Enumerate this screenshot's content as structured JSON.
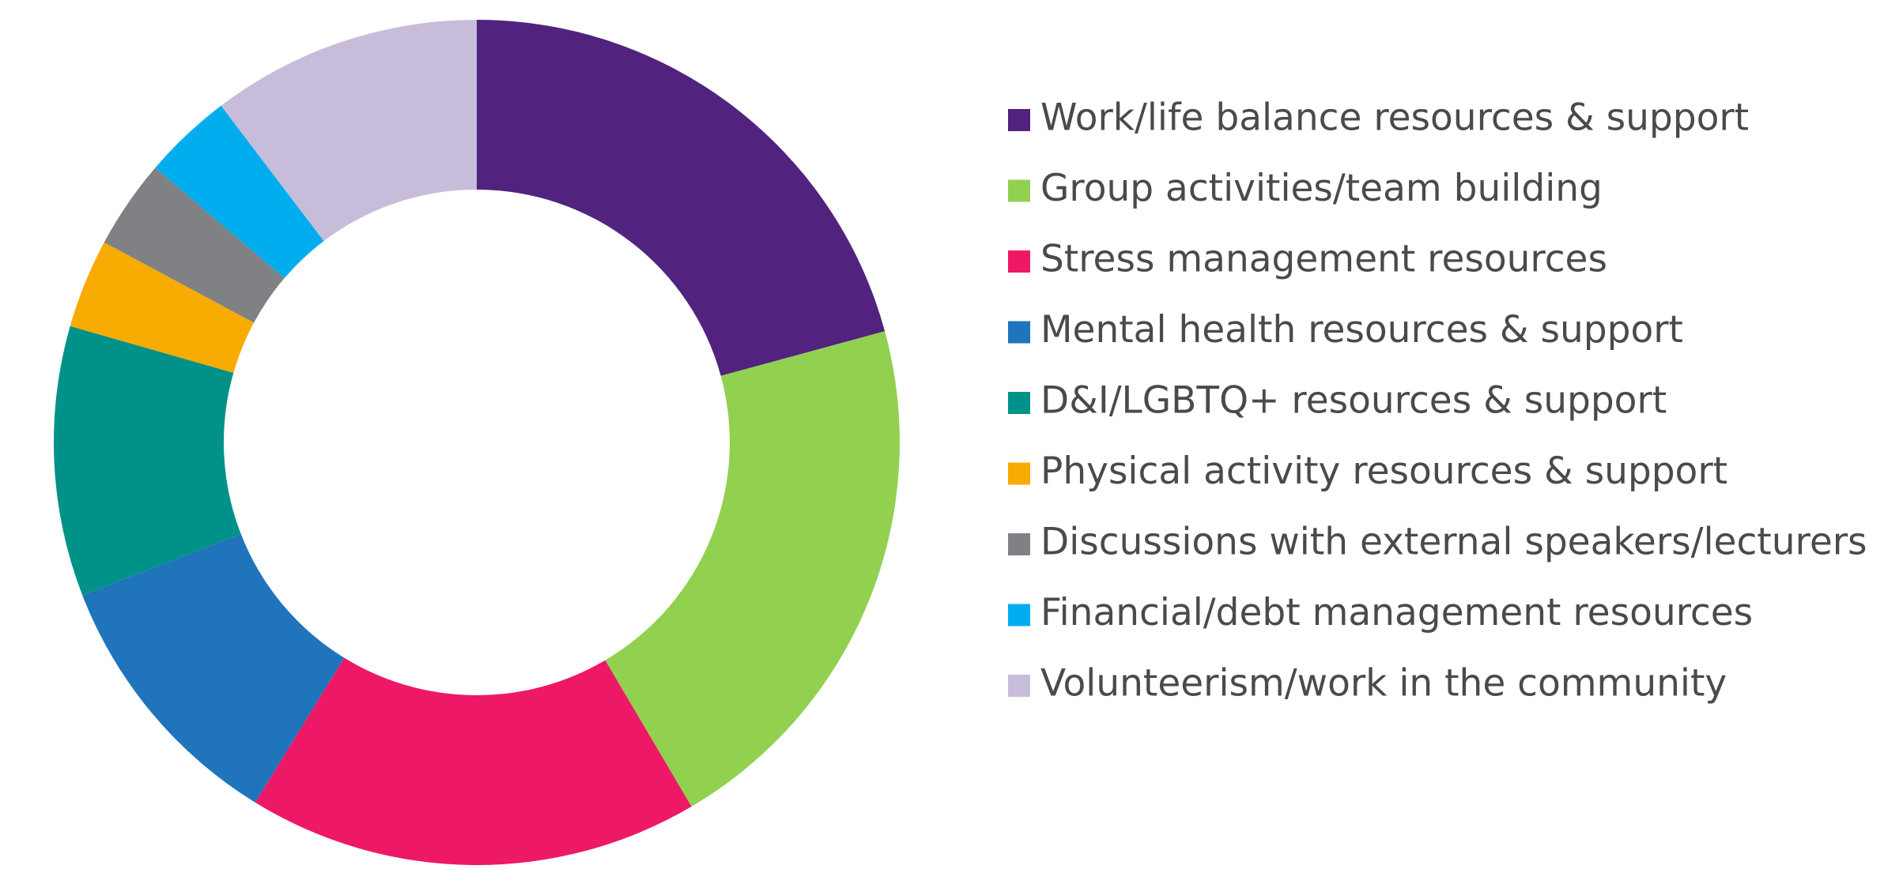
{
  "chart_data": {
    "type": "donut",
    "categories": [
      "Work/life balance resources & support",
      "Group activities/team building",
      "Stress management resources",
      "Mental health resources & support",
      "D&I/LGBTQ+ resources & support",
      "Physical activity resources & support",
      "Discussions with external speakers/lecturers",
      "Financial/debt management resources",
      "Volunteerism/work in the community"
    ],
    "values": [
      20.7,
      20.7,
      17.2,
      10.3,
      10.3,
      3.4,
      3.4,
      3.4,
      10.3
    ],
    "colors": [
      "#51237f",
      "#92d050",
      "#ed1966",
      "#1f74bb",
      "#009289",
      "#f8ab00",
      "#808184",
      "#00aeef",
      "#c8bcdb"
    ],
    "legend": "right"
  }
}
